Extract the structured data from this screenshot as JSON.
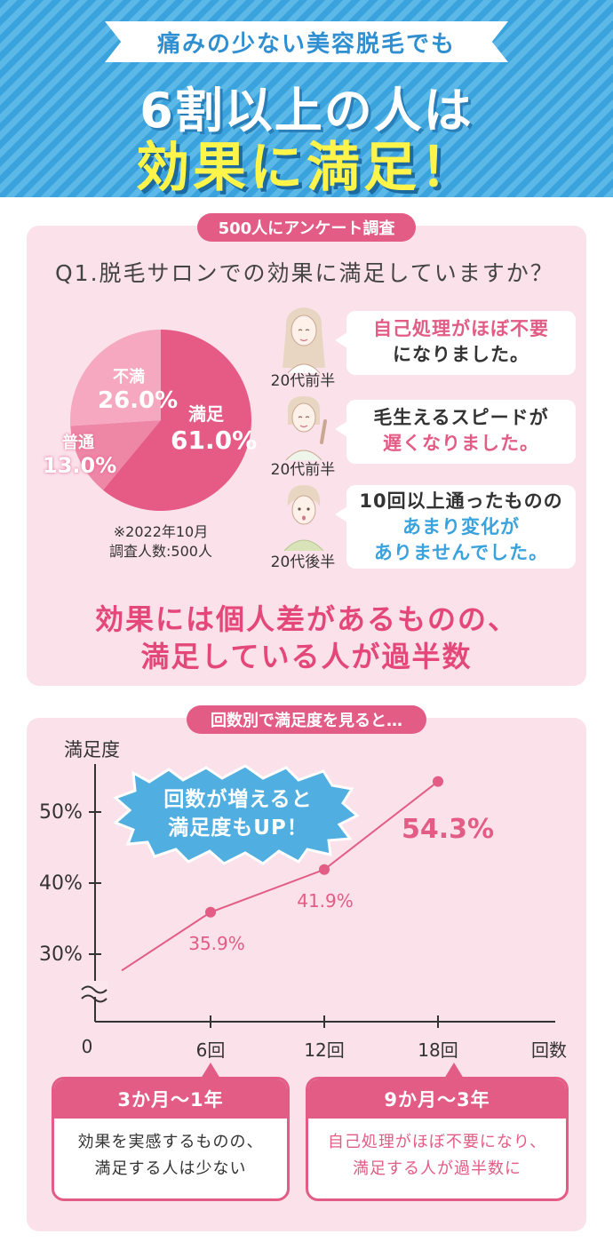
{
  "header": {
    "ribbon": "痛みの少ない美容脱毛でも",
    "line1": "6割以上の人は",
    "line2": "効果に満足！"
  },
  "survey": {
    "badge": "500人にアンケート調査",
    "question": "Q1.脱毛サロンでの効果に満足していますか？",
    "note_line1": "※2022年10月",
    "note_line2": "調査人数:500人",
    "comments": [
      {
        "age": "20代前半",
        "line1": "自己処理がほぼ不要",
        "line2": "になりました。",
        "avatar": "woman-long-hair-avatar"
      },
      {
        "age": "20代前半",
        "line1": "毛生えるスピードが",
        "line2": "遅くなりました。",
        "avatar": "woman-pointing-avatar"
      },
      {
        "age": "20代後半",
        "line1": "10回以上通ったものの",
        "line2": "あまり変化が",
        "line3": "ありませんでした。",
        "avatar": "woman-surprised-avatar"
      }
    ],
    "summary_line1": "効果には個人差があるものの、",
    "summary_line2": "満足している人が過半数"
  },
  "line_section": {
    "badge": "回数別で満足度を見ると…",
    "callout_line1": "回数が増えると",
    "callout_line2": "満足度もUP！",
    "cards": [
      {
        "title": "3か月〜1年",
        "line1": "効果を実感するものの、",
        "line2": "満足する人は少ない"
      },
      {
        "title": "9か月〜3年",
        "line1": "自己処理がほぼ不要になり、",
        "line2": "満足する人が過半数に"
      }
    ]
  },
  "colors": {
    "accent_pink": "#e25c86",
    "header_blue": "#3aa2dc",
    "panel_bg": "#fbe1ea"
  },
  "chart_data": [
    {
      "type": "pie",
      "title": "",
      "slices": [
        {
          "label": "満足",
          "value": 61.0,
          "display": "61.0%",
          "color": "#e65a86"
        },
        {
          "label": "普通",
          "value": 13.0,
          "display": "13.0%",
          "color": "#ee86a6"
        },
        {
          "label": "不満",
          "value": 26.0,
          "display": "26.0%",
          "color": "#f5a8bf"
        }
      ]
    },
    {
      "type": "line",
      "ylabel": "満足度",
      "xlabel": "回数",
      "y_ticks": [
        "30%",
        "40%",
        "50%"
      ],
      "x_ticks": [
        "0",
        "6回",
        "12回",
        "18回"
      ],
      "ylim": [
        30,
        50
      ],
      "points": [
        {
          "x": 6,
          "y": 35.9,
          "label": "35.9%"
        },
        {
          "x": 12,
          "y": 41.9,
          "label": "41.9%"
        },
        {
          "x": 18,
          "y": 54.3,
          "label": "54.3%"
        }
      ],
      "grid": false
    }
  ]
}
